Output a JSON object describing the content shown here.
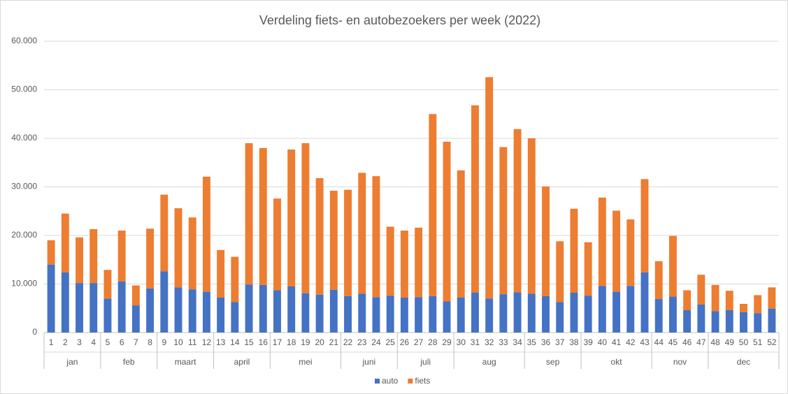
{
  "chart_data": {
    "type": "stacked_bar",
    "title": "Verdeling fiets- en autobezoekers per week (2022)",
    "categories": [
      "1",
      "2",
      "3",
      "4",
      "5",
      "6",
      "7",
      "8",
      "9",
      "10",
      "11",
      "12",
      "13",
      "14",
      "15",
      "16",
      "17",
      "18",
      "19",
      "20",
      "21",
      "22",
      "23",
      "24",
      "25",
      "26",
      "27",
      "28",
      "29",
      "30",
      "31",
      "32",
      "33",
      "34",
      "35",
      "36",
      "37",
      "38",
      "39",
      "40",
      "41",
      "42",
      "43",
      "44",
      "45",
      "46",
      "47",
      "48",
      "49",
      "50",
      "51",
      "52"
    ],
    "groups": [
      {
        "label": "jan",
        "weeks": 4
      },
      {
        "label": "feb",
        "weeks": 4
      },
      {
        "label": "maart",
        "weeks": 4
      },
      {
        "label": "april",
        "weeks": 4
      },
      {
        "label": "mei",
        "weeks": 5
      },
      {
        "label": "juni",
        "weeks": 4
      },
      {
        "label": "juli",
        "weeks": 4
      },
      {
        "label": "aug",
        "weeks": 5
      },
      {
        "label": "sep",
        "weeks": 4
      },
      {
        "label": "okt",
        "weeks": 5
      },
      {
        "label": "nov",
        "weeks": 4
      },
      {
        "label": "dec",
        "weeks": 5
      }
    ],
    "series": [
      {
        "name": "auto",
        "color": "#4472c4",
        "values": [
          14000,
          12400,
          10200,
          10200,
          7000,
          10500,
          5600,
          9100,
          12600,
          9300,
          8900,
          8400,
          7200,
          6300,
          9900,
          9800,
          8700,
          9500,
          8100,
          7800,
          8800,
          7500,
          8000,
          7300,
          7600,
          7200,
          7300,
          7500,
          6400,
          7200,
          8200,
          7000,
          7900,
          8300,
          8000,
          7500,
          6300,
          8200,
          7600,
          9600,
          8400,
          9600,
          12400,
          6900,
          7400,
          4600,
          5800,
          4400,
          4600,
          4200,
          4000,
          4900
        ]
      },
      {
        "name": "fiets",
        "color": "#ed7d31",
        "values": [
          5000,
          12100,
          9400,
          11100,
          5900,
          10500,
          4100,
          12300,
          15800,
          16300,
          14800,
          23700,
          9800,
          9300,
          29100,
          28200,
          18900,
          28200,
          30900,
          24000,
          20400,
          21900,
          24900,
          24900,
          14200,
          13800,
          14300,
          37500,
          32900,
          26200,
          38600,
          45600,
          30300,
          33600,
          32000,
          22600,
          12500,
          17300,
          11000,
          18200,
          16700,
          13700,
          19200,
          7800,
          12500,
          4100,
          6100,
          5400,
          4000,
          1700,
          3700,
          4400
        ]
      }
    ],
    "ylim": [
      0,
      60000
    ],
    "yticks": [
      0,
      {
        "value": 10000,
        "label": "10.000"
      },
      {
        "value": 20000,
        "label": "20.000"
      },
      {
        "value": 30000,
        "label": "30.000"
      },
      {
        "value": 40000,
        "label": "40.000"
      },
      {
        "value": 50000,
        "label": "50.000"
      },
      {
        "value": 60000,
        "label": "60.000"
      }
    ],
    "grid": true,
    "legend": "bottom"
  }
}
